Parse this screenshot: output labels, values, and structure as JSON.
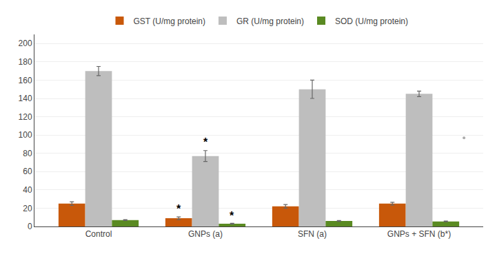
{
  "chart_data": {
    "type": "bar",
    "categories": [
      "Control",
      "GNPs (a)",
      "SFN (a)",
      "GNPs + SFN (b*)"
    ],
    "series": [
      {
        "name": "GST (U/mg protein)",
        "color": "#C8580A",
        "values": [
          25,
          9,
          22,
          25
        ],
        "errors": [
          2,
          1.5,
          2,
          1.5
        ]
      },
      {
        "name": "GR (U/mg protein)",
        "color": "#BEBEBE",
        "values": [
          170,
          77,
          150,
          145
        ],
        "errors": [
          5,
          6,
          10,
          3
        ]
      },
      {
        "name": "SOD (U/mg protein)",
        "color": "#5A8A22",
        "values": [
          7,
          3,
          6,
          5.5
        ],
        "errors": [
          0.5,
          0.5,
          0.5,
          0.4
        ]
      }
    ],
    "annotations": [
      {
        "text": "*",
        "category": "GNPs (a)",
        "series": "GST (U/mg protein)",
        "y": 11.5
      },
      {
        "text": "*",
        "category": "GNPs (a)",
        "series": "GR (U/mg protein)",
        "y": 84
      },
      {
        "text": "*",
        "category": "GNPs (a)",
        "series": "SOD (U/mg protein)",
        "y": 4
      }
    ],
    "points": [
      {
        "category": "GNPs + SFN (b*)",
        "y": 97,
        "color": "#AAAAAA"
      }
    ],
    "ylim": [
      0,
      210
    ],
    "yticks": [
      0,
      20,
      40,
      60,
      80,
      100,
      120,
      140,
      160,
      180,
      200
    ],
    "grid": true,
    "legend": "top"
  }
}
